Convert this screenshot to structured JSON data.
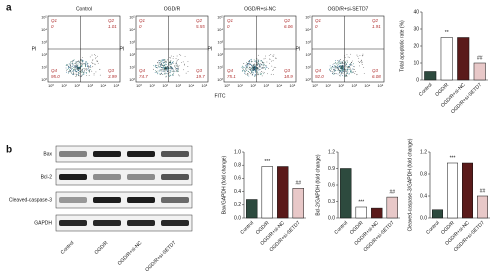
{
  "panel_a": {
    "label": "a",
    "x_axis_label": "FITC",
    "y_axis_label": "PI",
    "axis_ticks": [
      "10⁰",
      "10¹",
      "10²",
      "10³",
      "10⁴",
      "10⁵"
    ],
    "quadrant_names": [
      "Q1",
      "Q2",
      "Q3",
      "Q4"
    ],
    "plots": [
      {
        "title": "Control",
        "q1": "0",
        "q2": "1.01",
        "q3": "3.99",
        "q4": "95.0"
      },
      {
        "title": "OGD/R",
        "q1": "0",
        "q2": "5.55",
        "q3": "19.7",
        "q4": "74.7"
      },
      {
        "title": "OGD/R+si-NC",
        "q1": "0",
        "q2": "6.06",
        "q3": "18.9",
        "q4": "75.1"
      },
      {
        "title": "OGD/R+si-SETD7",
        "q1": "0",
        "q2": "1.91",
        "q3": "6.08",
        "q4": "92.0"
      }
    ]
  },
  "panel_b": {
    "label": "b",
    "blot_rows": [
      "Bax",
      "Bcl-2",
      "Cleaved-caspase-3",
      "GAPDH"
    ],
    "lane_labels": [
      "Control",
      "OGD/R",
      "OGD/R+si-NC",
      "OGD/R+si-SETD7"
    ]
  },
  "chart_data": [
    {
      "type": "bar",
      "ylabel": "Total apoptotic rate (%)",
      "categories": [
        "Control",
        "OGD/R",
        "OGD/R+si-NC",
        "OGD/R+si-SETD7"
      ],
      "values": [
        5,
        25,
        25,
        10
      ],
      "colors": [
        "#2d4a3e",
        "#ffffff",
        "#5a1a1a",
        "#e8c8c8"
      ],
      "ylim": [
        0,
        40
      ],
      "yticks": [
        0,
        10,
        20,
        30,
        40
      ],
      "significance": [
        null,
        "**",
        null,
        "##"
      ]
    },
    {
      "type": "bar",
      "ylabel": "Bax/GAPDH (fold change)",
      "categories": [
        "Control",
        "OGD/R",
        "OGD/R+si-NC",
        "OGD/R+si-SETD7"
      ],
      "values": [
        0.28,
        0.78,
        0.78,
        0.45
      ],
      "colors": [
        "#2d4a3e",
        "#ffffff",
        "#5a1a1a",
        "#e8c8c8"
      ],
      "ylim": [
        0,
        1.0
      ],
      "yticks": [
        {
          "value": 0,
          "label": "0.0"
        },
        0.2,
        0.4,
        0.6,
        0.8,
        {
          "value": 1,
          "label": "1.0"
        }
      ],
      "significance": [
        null,
        "***",
        null,
        "##"
      ]
    },
    {
      "type": "bar",
      "ylabel": "Bcl-2/GAPDH (fold change)",
      "categories": [
        "Control",
        "OGD/R",
        "OGD/R+si-NC",
        "OGD/R+si-SETD7"
      ],
      "values": [
        0.9,
        0.2,
        0.18,
        0.38
      ],
      "colors": [
        "#2d4a3e",
        "#ffffff",
        "#5a1a1a",
        "#e8c8c8"
      ],
      "ylim": [
        0,
        1.2
      ],
      "yticks": [
        {
          "value": 0,
          "label": "0.0"
        },
        0.3,
        0.6,
        0.9,
        1.2
      ],
      "significance": [
        null,
        "***",
        null,
        "##"
      ]
    },
    {
      "type": "bar",
      "ylabel": "Cleaved-caspase-3/GAPDH (fold change)",
      "categories": [
        "Control",
        "OGD/R",
        "OGD/R+si-NC",
        "OGD/R+si-SETD7"
      ],
      "values": [
        0.15,
        1.0,
        1.0,
        0.4
      ],
      "colors": [
        "#2d4a3e",
        "#ffffff",
        "#5a1a1a",
        "#e8c8c8"
      ],
      "ylim": [
        0,
        1.2
      ],
      "yticks": [
        {
          "value": 0,
          "label": "0.0"
        },
        0.4,
        0.8,
        1.2
      ],
      "significance": [
        null,
        "***",
        null,
        "##"
      ]
    }
  ]
}
